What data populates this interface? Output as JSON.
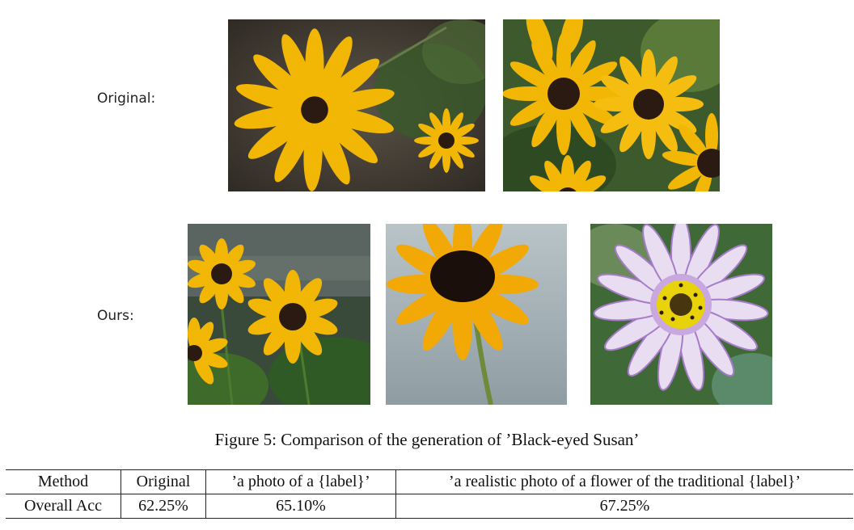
{
  "figure": {
    "rows": [
      {
        "label": "Original:"
      },
      {
        "label": "Ours:"
      }
    ],
    "images": [
      {
        "name": "original-image-1",
        "kind": "two yellow black-eyed susans on dark background"
      },
      {
        "name": "original-image-2",
        "kind": "cluster of yellow black-eyed susans"
      },
      {
        "name": "ours-image-1",
        "kind": "yellow black-eyed susans with green stems"
      },
      {
        "name": "ours-image-2",
        "kind": "single black-eyed susan on grey sky"
      },
      {
        "name": "ours-image-3",
        "kind": "purple-white daisy with yellow center"
      }
    ],
    "colors": {
      "petal_yellow": "#f2b705",
      "center_dark": "#2a1a12",
      "leaf_green": "#3f6b2a",
      "petal_lilac": "#c9a8e0"
    },
    "caption": "Figure 5: Comparison of the generation of ’Black-eyed Susan’"
  },
  "table": {
    "headers": [
      "Method",
      "Original",
      "’a photo of a {label}’",
      "’a realistic photo of a flower of the traditional {label}’"
    ],
    "rows": [
      [
        "Overall Acc",
        "62.25%",
        "65.10%",
        "67.25%"
      ]
    ]
  }
}
